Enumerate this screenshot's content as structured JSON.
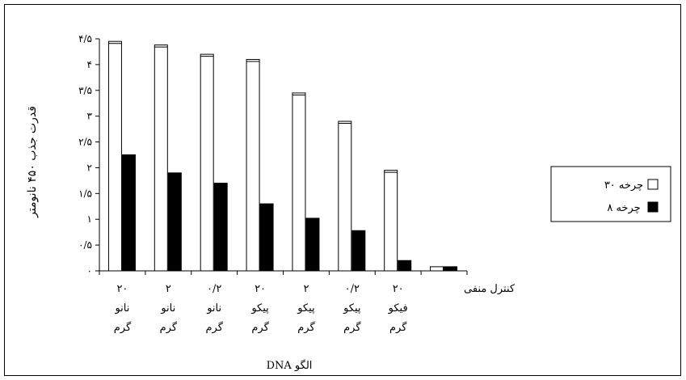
{
  "chart_data": {
    "type": "bar",
    "ylabel": "قدرت جذب ۴۵۰ نانومتر",
    "xlabel": "DNA الگو",
    "ylim": [
      0,
      4.5
    ],
    "yticks": [
      "۰",
      "۰/۵",
      "۱",
      "۱/۵",
      "۲",
      "۲/۵",
      "۳",
      "۳/۵",
      "۴",
      "۴/۵"
    ],
    "categories": [
      [
        "۲۰",
        "نانو",
        "گرم"
      ],
      [
        "۲",
        "نانو",
        "گرم"
      ],
      [
        "۰/۲",
        "نانو",
        "گرم"
      ],
      [
        "۲۰",
        "پیکو",
        "گرم"
      ],
      [
        "۲",
        "پیکو",
        "گرم"
      ],
      [
        "۰/۲",
        "پیکو",
        "گرم"
      ],
      [
        "۲۰",
        "فیکو",
        "گرم"
      ],
      [
        "کنترل منفی"
      ]
    ],
    "series": [
      {
        "name": "چرخه ۳۰",
        "color": "#ffffff",
        "values": [
          4.45,
          4.38,
          4.2,
          4.1,
          3.45,
          2.9,
          1.95,
          0.08
        ]
      },
      {
        "name": "چرخه ۸",
        "color": "#000000",
        "values": [
          2.25,
          1.9,
          1.7,
          1.3,
          1.02,
          0.78,
          0.2,
          0.08
        ]
      }
    ],
    "legend": "right",
    "grid": false
  }
}
